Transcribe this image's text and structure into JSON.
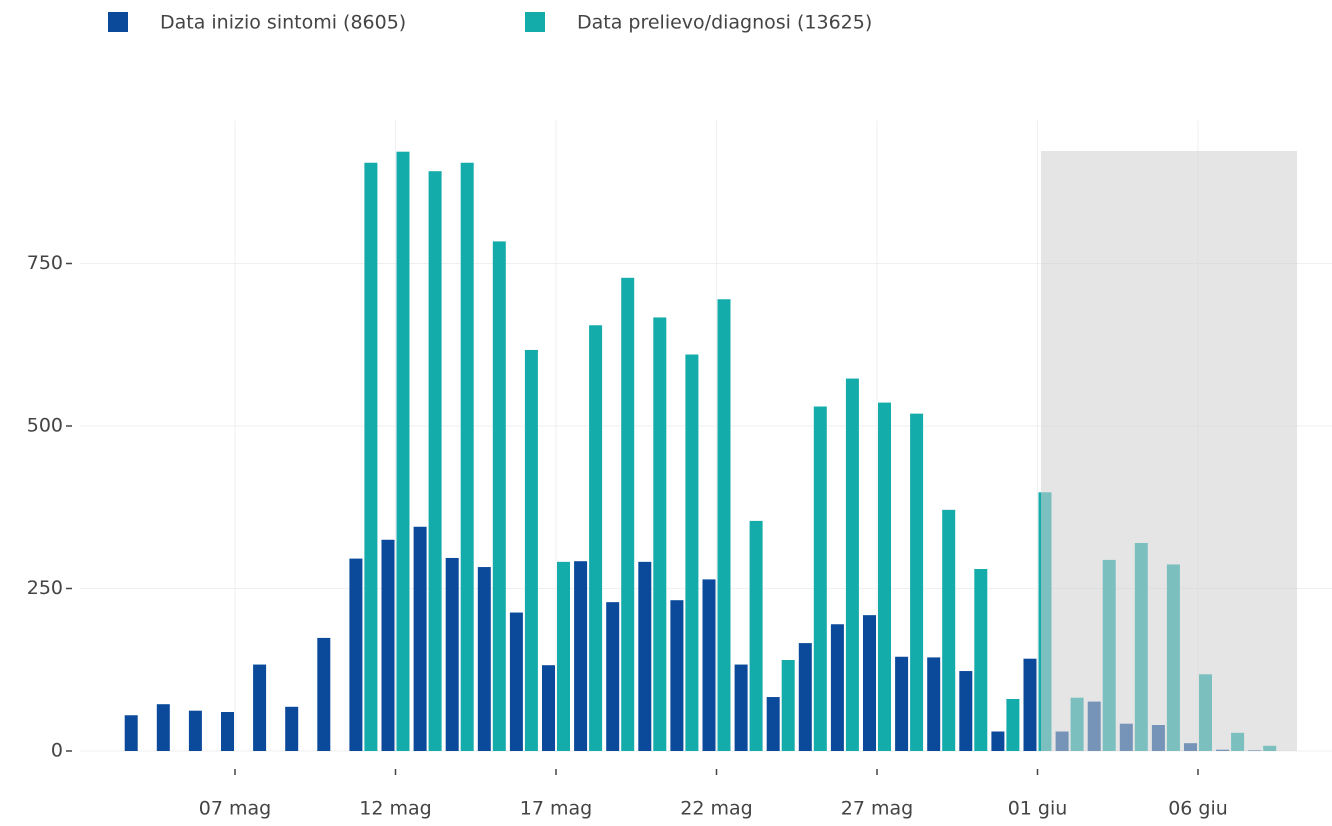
{
  "chart_data": {
    "type": "bar",
    "categories": [
      null,
      null,
      null,
      "07 mag",
      null,
      null,
      null,
      null,
      "12 mag",
      null,
      null,
      null,
      null,
      "17 mag",
      null,
      null,
      null,
      null,
      "22 mag",
      null,
      null,
      null,
      null,
      "27 mag",
      null,
      null,
      null,
      null,
      "01 giu",
      null,
      null,
      null,
      null,
      "06 giu",
      null,
      null
    ],
    "series": [
      {
        "name": "Data inizio sintomi (8605)",
        "color": "#0b4a9b",
        "values": [
          55,
          72,
          62,
          60,
          133,
          68,
          174,
          296,
          325,
          345,
          297,
          283,
          213,
          132,
          292,
          229,
          291,
          232,
          264,
          133,
          83,
          166,
          195,
          209,
          145,
          144,
          123,
          30,
          142,
          30,
          76,
          42,
          40,
          12,
          2,
          1
        ]
      },
      {
        "name": "Data prelievo/diagnosi (13625)",
        "color": "#14abab",
        "values": [
          null,
          null,
          null,
          null,
          null,
          null,
          null,
          905,
          922,
          892,
          905,
          784,
          617,
          291,
          655,
          728,
          667,
          610,
          695,
          354,
          140,
          530,
          573,
          536,
          519,
          371,
          280,
          80,
          398,
          82,
          294,
          320,
          287,
          118,
          28,
          8
        ]
      }
    ],
    "ylim": [
      0,
      970
    ],
    "yticks": [
      0,
      250,
      500,
      750
    ],
    "grid": true
  }
}
